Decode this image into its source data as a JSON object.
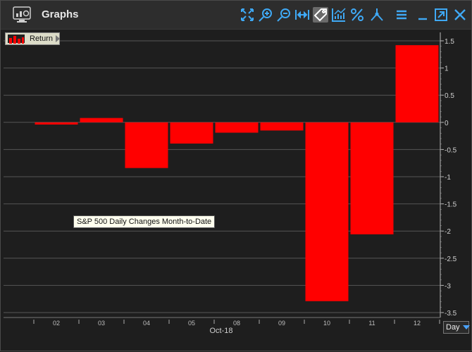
{
  "window": {
    "title": "Graphs"
  },
  "toolbar": {
    "icons": [
      "fit-icon",
      "zoom-in-icon",
      "zoom-out-icon",
      "pan-icon",
      "tag-icon",
      "chart-style-icon",
      "percent-icon",
      "draw-icon",
      "menu-icon",
      "minimize-icon",
      "popout-icon",
      "close-icon"
    ]
  },
  "legend": {
    "label": "Return",
    "color": "#ff0000"
  },
  "annotation": {
    "text": "S&P 500 Daily Changes Month-to-Date"
  },
  "period_select": {
    "value": "Day"
  },
  "chart_data": {
    "type": "bar",
    "categories": [
      "02",
      "03",
      "04",
      "05",
      "08",
      "09",
      "10",
      "11",
      "12"
    ],
    "x_group_label": "Oct-18",
    "series": [
      {
        "name": "Return",
        "color": "#ff0000",
        "values": [
          -0.04,
          0.08,
          -0.84,
          -0.39,
          -0.19,
          -0.15,
          -3.29,
          -2.06,
          1.42
        ]
      }
    ],
    "y_ticks": [
      "1.5",
      "1",
      "0.5",
      "0",
      "-0.5",
      "-1",
      "-1.5",
      "-2",
      "-2.5",
      "-3",
      "-3.5"
    ],
    "ylim": [
      -3.5,
      1.5
    ],
    "grid": true,
    "y_axis_position": "right"
  }
}
